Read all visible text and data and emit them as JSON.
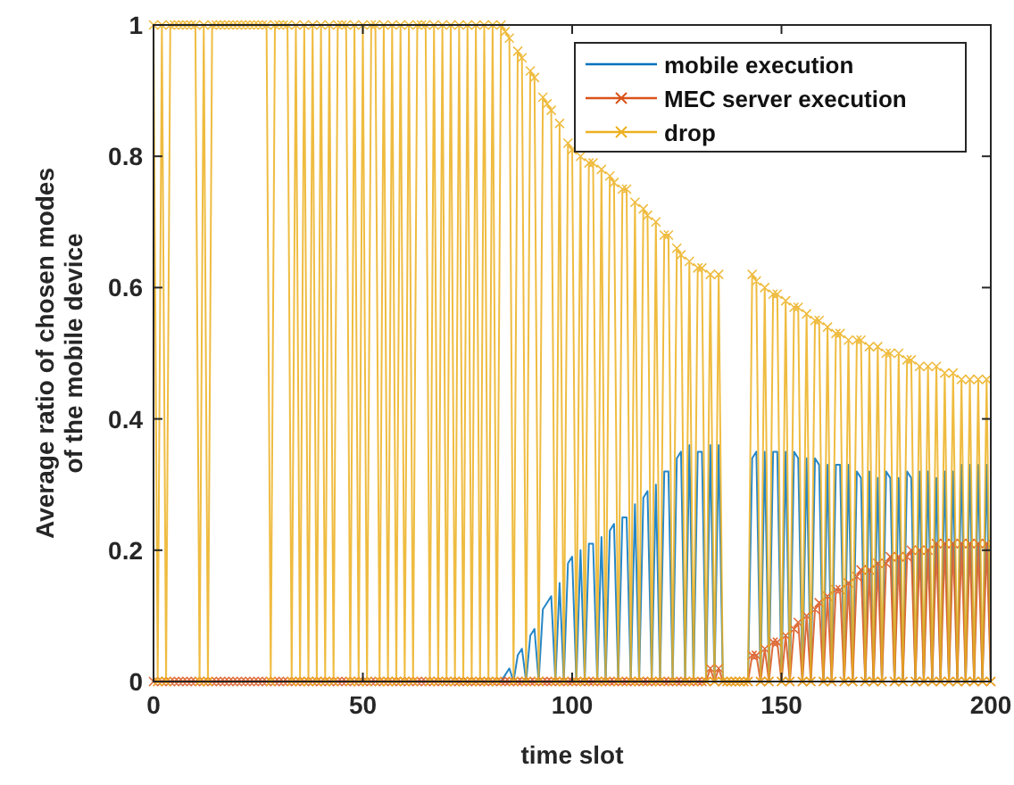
{
  "chart_data": {
    "type": "line",
    "xlabel": "time slot",
    "ylabel": "Average ratio of chosen modes\nof the mobile device",
    "xlim": [
      0,
      200
    ],
    "ylim": [
      0,
      1
    ],
    "xticks": [
      0,
      50,
      100,
      150,
      200
    ],
    "yticks": [
      0,
      0.2,
      0.4,
      0.6,
      0.8,
      1
    ],
    "grid": false,
    "legend": "top right",
    "line_style": "solid",
    "x": [
      0,
      1,
      2,
      3,
      4,
      5,
      6,
      7,
      8,
      9,
      10,
      11,
      12,
      13,
      14,
      15,
      16,
      17,
      18,
      19,
      20,
      21,
      22,
      23,
      24,
      25,
      26,
      27,
      28,
      29,
      30,
      31,
      32,
      33,
      34,
      35,
      36,
      37,
      38,
      39,
      40,
      41,
      42,
      43,
      44,
      45,
      46,
      47,
      48,
      49,
      50,
      51,
      52,
      53,
      54,
      55,
      56,
      57,
      58,
      59,
      60,
      61,
      62,
      63,
      64,
      65,
      66,
      67,
      68,
      69,
      70,
      71,
      72,
      73,
      74,
      75,
      76,
      77,
      78,
      79,
      80,
      81,
      82,
      83,
      84,
      85,
      86,
      87,
      88,
      89,
      90,
      91,
      92,
      93,
      94,
      95,
      96,
      97,
      98,
      99,
      100,
      101,
      102,
      103,
      104,
      105,
      106,
      107,
      108,
      109,
      110,
      111,
      112,
      113,
      114,
      115,
      116,
      117,
      118,
      119,
      120,
      121,
      122,
      123,
      124,
      125,
      126,
      127,
      128,
      129,
      130,
      131,
      132,
      133,
      134,
      135,
      136,
      137,
      138,
      139,
      140,
      141,
      142,
      143,
      144,
      145,
      146,
      147,
      148,
      149,
      150,
      151,
      152,
      153,
      154,
      155,
      156,
      157,
      158,
      159,
      160,
      161,
      162,
      163,
      164,
      165,
      166,
      167,
      168,
      169,
      170,
      171,
      172,
      173,
      174,
      175,
      176,
      177,
      178,
      179,
      180,
      181,
      182,
      183,
      184,
      185,
      186,
      187,
      188,
      189,
      190,
      191,
      192,
      193,
      194,
      195,
      196,
      197,
      198,
      199,
      200
    ],
    "series": [
      {
        "name": "mobile execution",
        "color": "#0072bd",
        "marker": "none",
        "values": [
          null,
          null,
          null,
          null,
          null,
          null,
          null,
          null,
          null,
          null,
          null,
          null,
          null,
          null,
          null,
          null,
          null,
          null,
          null,
          null,
          null,
          null,
          null,
          null,
          null,
          null,
          null,
          null,
          null,
          null,
          null,
          null,
          null,
          null,
          null,
          null,
          null,
          null,
          null,
          null,
          null,
          null,
          null,
          null,
          null,
          null,
          null,
          null,
          null,
          null,
          null,
          null,
          null,
          null,
          null,
          null,
          null,
          null,
          null,
          null,
          null,
          null,
          null,
          null,
          null,
          null,
          null,
          null,
          null,
          null,
          null,
          null,
          null,
          null,
          null,
          null,
          null,
          null,
          null,
          null,
          null,
          null,
          null,
          0,
          0.01,
          0.02,
          0,
          0.04,
          0.05,
          0,
          0.07,
          0.08,
          0,
          0.11,
          0.12,
          0.13,
          0,
          0.15,
          0,
          0.18,
          0.19,
          0,
          0.2,
          0,
          0.21,
          0.21,
          0,
          0.22,
          0,
          0.23,
          0.24,
          0,
          0.25,
          0.25,
          0,
          0.27,
          0,
          0.28,
          0.29,
          0,
          0.3,
          0,
          0.32,
          0.32,
          0,
          0.34,
          0.35,
          0,
          0.36,
          0,
          0.35,
          0.35,
          0,
          0.36,
          0,
          0.36,
          0,
          0,
          0,
          0,
          0,
          0,
          0,
          0.34,
          0.35,
          0,
          0.35,
          0,
          0.35,
          0.35,
          0,
          0.35,
          0,
          0.35,
          0.34,
          0,
          0.34,
          0,
          0.34,
          0.33,
          0,
          0.33,
          0,
          0.33,
          0.33,
          0,
          0.33,
          0,
          0.32,
          0.31,
          0,
          0.32,
          0,
          0.31,
          0,
          0.32,
          0.31,
          0,
          0.31,
          0,
          0.32,
          0.31,
          0,
          0.32,
          0,
          0.32,
          0,
          0.31,
          0,
          0.32,
          0,
          0.32,
          0,
          0.33,
          0,
          0.33,
          0,
          0.33,
          0,
          0.33,
          0
        ]
      },
      {
        "name": "MEC server execution",
        "color": "#d95319",
        "marker": "cross",
        "values": [
          0,
          0,
          0,
          0,
          0,
          0,
          0,
          0,
          0,
          0,
          0,
          0,
          0,
          0,
          0,
          0,
          0,
          0,
          0,
          0,
          0,
          0,
          0,
          0,
          0,
          0,
          0,
          0,
          0,
          0,
          0,
          0,
          0,
          0,
          0,
          0,
          0,
          0,
          0,
          0,
          0,
          0,
          0,
          0,
          0,
          0,
          0,
          0,
          0,
          0,
          0,
          0,
          0,
          0,
          0,
          0,
          0,
          0,
          0,
          0,
          0,
          0,
          0,
          0,
          0,
          0,
          0,
          0,
          0,
          0,
          0,
          0,
          0,
          0,
          0,
          0,
          0,
          0,
          0,
          0,
          0,
          0,
          0,
          0,
          0,
          0,
          0,
          0,
          0,
          0,
          0,
          0,
          0,
          0,
          0,
          0,
          0,
          0,
          0,
          0,
          0,
          0,
          0,
          0,
          0,
          0,
          0,
          0,
          0,
          0,
          0,
          0,
          0,
          0,
          0,
          0,
          0,
          0,
          0,
          0,
          0,
          0,
          0,
          0,
          0,
          0,
          0,
          0,
          0,
          0,
          0,
          0,
          0,
          0.02,
          0,
          0.02,
          0,
          0,
          0,
          0,
          0,
          0,
          0,
          0.04,
          0.04,
          0,
          0.05,
          0,
          0.06,
          0.06,
          0,
          0.07,
          0,
          0.08,
          0.09,
          0,
          0.1,
          0,
          0.11,
          0.12,
          0,
          0.13,
          0,
          0.14,
          0.14,
          0,
          0.15,
          0,
          0.16,
          0.17,
          0,
          0.17,
          0,
          0.18,
          0,
          0.18,
          0.19,
          0,
          0.19,
          0,
          0.19,
          0.2,
          0,
          0.2,
          0,
          0.2,
          0,
          0.21,
          0,
          0.21,
          0,
          0.21,
          0,
          0.21,
          0,
          0.21,
          0,
          0.21,
          0,
          0.21,
          0
        ]
      },
      {
        "name": "drop",
        "color": "#edb120",
        "marker": "cross",
        "values": [
          1,
          0,
          1,
          0,
          1,
          1,
          1,
          1,
          1,
          1,
          1,
          0,
          1,
          0,
          1,
          1,
          1,
          1,
          1,
          1,
          1,
          1,
          1,
          1,
          1,
          1,
          1,
          1,
          0,
          1,
          1,
          1,
          1,
          0,
          1,
          0,
          1,
          0,
          1,
          0,
          1,
          0,
          1,
          0,
          1,
          1,
          1,
          0,
          1,
          0,
          1,
          0,
          1,
          1,
          0,
          1,
          0,
          1,
          0,
          1,
          0,
          1,
          0,
          1,
          1,
          1,
          0,
          1,
          0,
          1,
          0,
          1,
          0,
          1,
          0,
          1,
          0,
          1,
          0,
          1,
          0,
          1,
          0,
          1,
          0.99,
          0.98,
          0,
          0.96,
          0.95,
          0,
          0.93,
          0.92,
          0,
          0.89,
          0.88,
          0.87,
          0,
          0.85,
          0,
          0.82,
          0.81,
          0,
          0.8,
          0,
          0.79,
          0.79,
          0,
          0.78,
          0,
          0.77,
          0.76,
          0,
          0.75,
          0.75,
          0,
          0.73,
          0,
          0.72,
          0.71,
          0,
          0.7,
          0,
          0.68,
          0.68,
          0,
          0.66,
          0.65,
          0,
          0.64,
          0,
          0.63,
          0.63,
          0,
          0.62,
          0,
          0.62,
          0,
          0,
          0,
          0,
          0,
          0,
          0,
          0.62,
          0.61,
          0,
          0.6,
          0,
          0.59,
          0.59,
          0,
          0.58,
          0,
          0.57,
          0.57,
          0,
          0.56,
          0,
          0.55,
          0.55,
          0,
          0.54,
          0,
          0.53,
          0.53,
          0,
          0.52,
          0,
          0.52,
          0.52,
          0,
          0.51,
          0,
          0.51,
          0,
          0.5,
          0.5,
          0,
          0.5,
          0,
          0.49,
          0.49,
          0,
          0.48,
          0,
          0.48,
          0,
          0.48,
          0,
          0.47,
          0,
          0.47,
          0,
          0.46,
          0,
          0.46,
          0,
          0.46,
          0,
          0.46,
          0
        ]
      }
    ]
  }
}
